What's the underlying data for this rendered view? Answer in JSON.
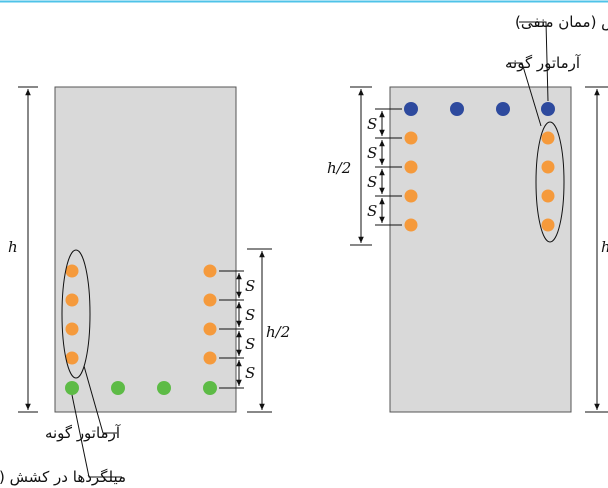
{
  "labels": {
    "neg_tension_bars": "میلگردها در کشش (ممان منفی)",
    "skin_bars_top": "آرماتور گونه",
    "skin_bars_bottom": "آرماتور گونه",
    "pos_tension_bars": "میلگردها در کشش (ممان مثبت)"
  },
  "dimensions": {
    "height": "h",
    "half_height": "h/2",
    "spacing": "S"
  },
  "colors": {
    "section_fill": "#d9d9d9",
    "top_line": "#4fc3e8",
    "tension_negative": "#2e4a9e",
    "tension_positive": "#5dbb46",
    "skin": "#f59a3c",
    "line": "#111111"
  }
}
